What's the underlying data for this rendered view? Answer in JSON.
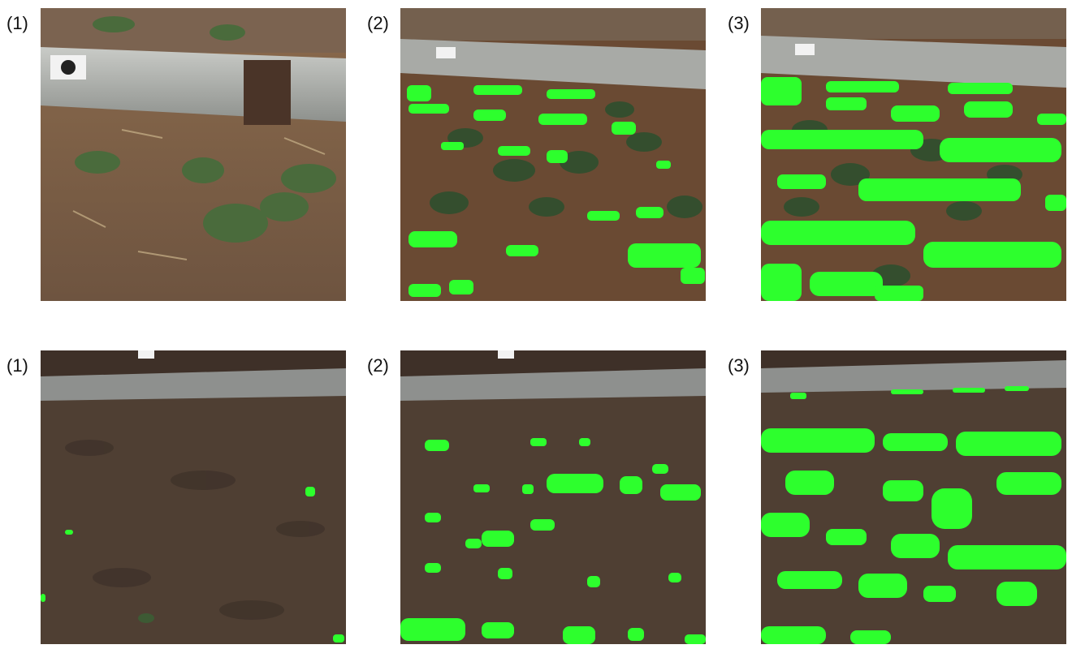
{
  "rows": [
    {
      "panels": [
        {
          "label": "(1)",
          "overlay": "none"
        },
        {
          "label": "(2)",
          "overlay": "partial"
        },
        {
          "label": "(3)",
          "overlay": "rows"
        }
      ]
    },
    {
      "panels": [
        {
          "label": "(1)",
          "overlay": "sparse"
        },
        {
          "label": "(2)",
          "overlay": "partial"
        },
        {
          "label": "(3)",
          "overlay": "rows"
        }
      ]
    }
  ],
  "colors": {
    "soil_top": "#7a5a3e",
    "soil_bottom": "#4a3a30",
    "rail": "#a7a9a7",
    "highlight": "#2dff2d",
    "plant": "#3d5a34"
  }
}
